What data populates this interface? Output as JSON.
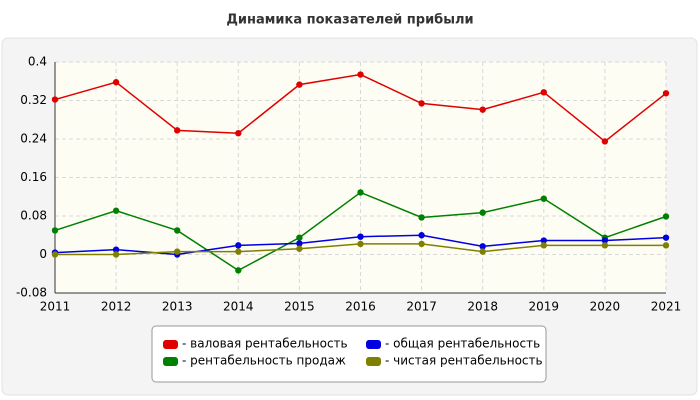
{
  "chart_data": {
    "type": "line",
    "title": "Динамика показателей прибыли",
    "x": [
      2011,
      2012,
      2013,
      2014,
      2015,
      2016,
      2017,
      2018,
      2019,
      2020,
      2021
    ],
    "xlim": [
      2011,
      2021
    ],
    "xticks": [
      2011,
      2012,
      2013,
      2014,
      2015,
      2016,
      2017,
      2018,
      2019,
      2020,
      2021
    ],
    "ylim": [
      -0.08,
      0.4
    ],
    "yticks": [
      0.4,
      0.32,
      0.24,
      0.16,
      0.08,
      0,
      -0.08
    ],
    "grid": true,
    "legend": "bottom",
    "series": [
      {
        "name": "- валовая рентабельность",
        "color": "#e00000",
        "values": [
          0.322,
          0.358,
          0.258,
          0.252,
          0.353,
          0.374,
          0.314,
          0.301,
          0.337,
          0.235,
          0.335
        ]
      },
      {
        "name": "- рентабельность продаж",
        "color": "#008000",
        "values": [
          0.05,
          0.091,
          0.05,
          -0.033,
          0.035,
          0.129,
          0.077,
          0.087,
          0.116,
          0.035,
          0.079
        ]
      },
      {
        "name": "- общая рентабельность",
        "color": "#0000e0",
        "values": [
          0.004,
          0.01,
          0,
          0.019,
          0.023,
          0.037,
          0.04,
          0.017,
          0.029,
          0.029,
          0.035
        ]
      },
      {
        "name": "- чистая рентабельность",
        "color": "#808000",
        "values": [
          0,
          0,
          0.006,
          0.006,
          0.012,
          0.022,
          0.022,
          0.006,
          0.019,
          0.019,
          0.019
        ]
      }
    ]
  }
}
